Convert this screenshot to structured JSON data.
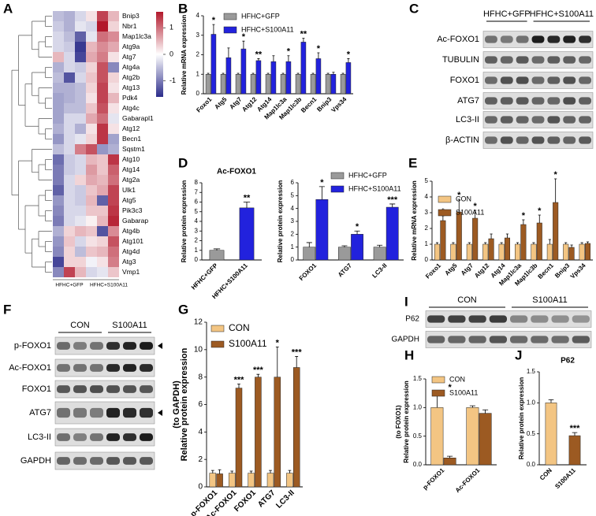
{
  "chart_data": [
    {
      "type": "heatmap",
      "panel": "A",
      "rows": [
        "Bnip3",
        "Nbr1",
        "Map1lc3a",
        "Atg9a",
        "Atg7",
        "Atg4a",
        "Atg2b",
        "Atg13",
        "Pdk4",
        "Atg4c",
        "Gabarapl1",
        "Atg12",
        "Becn1",
        "Sqstm1",
        "Atg10",
        "Atg14",
        "Atg2a",
        "Ulk1",
        "Atg5",
        "Pik3c3",
        "Gabarap",
        "Atg4b",
        "Atg101",
        "Atg4d",
        "Atg3",
        "Vmp1"
      ],
      "groups": [
        "HFHC+GFP",
        "HFHC+S100A11"
      ],
      "values": [
        [
          -0.5,
          -0.6,
          -0.3,
          0.2,
          1.3,
          0.5
        ],
        [
          -0.4,
          -0.6,
          -0.2,
          -0.3,
          1.6,
          0.3
        ],
        [
          -0.3,
          -0.5,
          -1.2,
          -0.2,
          1.0,
          0.8
        ],
        [
          -0.3,
          -0.4,
          -1.5,
          0.5,
          0.8,
          0.6
        ],
        [
          0.5,
          -0.3,
          -1.4,
          0.6,
          0.9,
          0.2
        ],
        [
          -0.6,
          -0.3,
          -0.4,
          0.3,
          1.2,
          -0.9
        ],
        [
          -0.5,
          -1.3,
          -0.3,
          0.4,
          1.2,
          0.3
        ],
        [
          -0.6,
          -0.6,
          -0.5,
          0.3,
          1.3,
          0.2
        ],
        [
          -0.7,
          -0.6,
          -0.5,
          0.2,
          1.3,
          0.5
        ],
        [
          -0.7,
          -0.5,
          -0.5,
          0.4,
          1.2,
          0.2
        ],
        [
          -0.7,
          -0.3,
          -0.3,
          0.6,
          1.0,
          -0.2
        ],
        [
          -0.6,
          -0.3,
          -0.6,
          0.2,
          1.4,
          0.2
        ],
        [
          -0.8,
          -0.3,
          -0.2,
          0.3,
          1.4,
          -0.7
        ],
        [
          -0.5,
          -0.3,
          0.9,
          1.2,
          -0.8,
          -0.6
        ],
        [
          -1.1,
          -0.4,
          -0.3,
          0.5,
          0.4,
          1.4
        ],
        [
          -1.0,
          -0.4,
          -0.3,
          0.7,
          0.4,
          1.1
        ],
        [
          -1.0,
          -0.3,
          0.3,
          0.6,
          0.5,
          1.0
        ],
        [
          -1.2,
          -0.3,
          -0.4,
          0.4,
          0.6,
          1.3
        ],
        [
          -0.8,
          -0.3,
          -0.4,
          0.5,
          -1.2,
          1.3
        ],
        [
          -0.9,
          -0.3,
          -0.3,
          0.4,
          0.4,
          1.4
        ],
        [
          -1.0,
          -0.3,
          -0.2,
          0.1,
          0.5,
          1.5
        ],
        [
          -0.6,
          0.3,
          0.5,
          0.4,
          -1.3,
          0.8
        ],
        [
          -0.8,
          0.4,
          -0.3,
          0.2,
          0.3,
          1.2
        ],
        [
          -0.9,
          0.3,
          -0.5,
          0.4,
          0.5,
          1.0
        ],
        [
          -1.4,
          0.3,
          0.3,
          -0.1,
          0.2,
          0.9
        ],
        [
          -0.9,
          1.3,
          0.5,
          -0.3,
          -0.2,
          0.4
        ]
      ],
      "colormap": [
        "#2b2c8a",
        "#ffffff",
        "#b2182b"
      ],
      "clim": [
        -1.6,
        1.6
      ],
      "cticks": [
        1,
        0,
        -1
      ]
    },
    {
      "type": "bar",
      "panel": "B",
      "ylabel": "Relative mRNA expression",
      "categories": [
        "Foxo1",
        "Atg5",
        "Atg7",
        "Atg12",
        "Atg14",
        "Map1lc3a",
        "Map1lc3b",
        "Becn1",
        "Bnip3",
        "Vps34"
      ],
      "series": [
        {
          "name": "HFHC+GFP",
          "color": "#9a9a9a",
          "values": [
            1,
            1,
            1,
            1,
            1,
            1,
            1,
            1,
            1,
            1
          ],
          "errors": [
            0.05,
            0.05,
            0.05,
            0.05,
            0.05,
            0.05,
            0.05,
            0.05,
            0.05,
            0.05
          ]
        },
        {
          "name": "HFHC+S100A11",
          "color": "#2222dd",
          "values": [
            3.05,
            1.85,
            2.3,
            1.7,
            1.65,
            1.65,
            2.65,
            1.8,
            1.0,
            1.6
          ],
          "errors": [
            0.5,
            0.5,
            0.4,
            0.1,
            0.3,
            0.3,
            0.2,
            0.3,
            0.1,
            0.2
          ]
        }
      ],
      "significance": [
        "*",
        null,
        "*",
        "**",
        null,
        "*",
        "**",
        "*",
        null,
        "*"
      ],
      "ylim": [
        0,
        4
      ],
      "yticks": [
        0,
        1,
        2,
        3,
        4
      ]
    },
    {
      "type": "bar",
      "panel": "D",
      "title": "Ac-FOXO1",
      "ylabel": "Relative protein expression",
      "categories": [
        "HFHC+GFP",
        "HFHC+S100A11"
      ],
      "values": [
        1,
        5.4
      ],
      "errors": [
        0.15,
        0.6
      ],
      "colors": [
        "#9a9a9a",
        "#2222dd"
      ],
      "significance": [
        null,
        "**"
      ],
      "ylim": [
        0,
        8
      ],
      "yticks": [
        0,
        1,
        2,
        3,
        4,
        5,
        6,
        7,
        8
      ]
    },
    {
      "type": "bar",
      "ylabel": "Relative protein expression",
      "categories": [
        "FOXO1",
        "ATG7",
        "LC3-II"
      ],
      "series": [
        {
          "name": "HFHC+GFP",
          "color": "#9a9a9a",
          "values": [
            1,
            1,
            1
          ],
          "errors": [
            0.35,
            0.1,
            0.15
          ]
        },
        {
          "name": "HFHC+S100A11",
          "color": "#2222dd",
          "values": [
            4.7,
            2.0,
            4.1
          ],
          "errors": [
            1.0,
            0.25,
            0.25
          ]
        }
      ],
      "significance": [
        "*",
        "*",
        "***"
      ],
      "ylim": [
        0,
        6
      ],
      "yticks": [
        0,
        1,
        2,
        3,
        4,
        5,
        6
      ]
    },
    {
      "type": "bar",
      "panel": "E",
      "ylabel": "Relative mRNA expression",
      "categories": [
        "Foxo1",
        "Atg5",
        "Atg7",
        "Atg12",
        "Atg14",
        "Map1lc3a",
        "Map1lc3b",
        "Becn1",
        "Bnip3",
        "Vps34"
      ],
      "series": [
        {
          "name": "CON",
          "color": "#f3c583",
          "values": [
            1,
            1,
            1,
            1,
            1,
            1,
            1,
            1,
            1,
            1
          ],
          "errors": [
            0.1,
            0.1,
            0.1,
            0.1,
            0.1,
            0.1,
            0.1,
            0.3,
            0.1,
            0.1
          ]
        },
        {
          "name": "S100A11",
          "color": "#9c5a22",
          "values": [
            2.5,
            3.05,
            2.65,
            1.35,
            1.4,
            2.25,
            2.35,
            3.65,
            0.8,
            1.05
          ],
          "errors": [
            0.3,
            0.8,
            0.5,
            0.3,
            0.25,
            0.3,
            0.5,
            1.5,
            0.15,
            0.1
          ]
        }
      ],
      "significance": [
        "*",
        "*",
        "*",
        null,
        null,
        "*",
        "*",
        "*",
        null,
        null
      ],
      "ylim": [
        0,
        5
      ],
      "yticks": [
        0,
        1,
        2,
        3,
        4,
        5
      ]
    },
    {
      "type": "bar",
      "panel": "G",
      "ylabel": [
        "Relative protein expression",
        "(to GAPDH)"
      ],
      "categories": [
        "p-FOXO1",
        "Ac-FOXO1",
        "FOXO1",
        "ATG7",
        "LC3-II"
      ],
      "series": [
        {
          "name": "CON",
          "color": "#f3c583",
          "values": [
            1,
            1,
            1,
            1,
            1
          ],
          "errors": [
            0.2,
            0.15,
            0.15,
            0.2,
            0.2
          ]
        },
        {
          "name": "S100A11",
          "color": "#9c5a22",
          "values": [
            0.95,
            7.2,
            8.0,
            8.0,
            8.7
          ],
          "errors": [
            0.3,
            0.3,
            0.2,
            2.2,
            0.8
          ]
        }
      ],
      "significance": [
        null,
        "***",
        "***",
        "*",
        "***"
      ],
      "ylim": [
        0,
        12
      ],
      "yticks": [
        0,
        2,
        4,
        6,
        8,
        10,
        12
      ]
    },
    {
      "type": "bar",
      "panel": "H",
      "ylabel": [
        "Relative protein expression",
        "(to FOXO1)"
      ],
      "categories": [
        "p-FOXO1",
        "Ac-FOXO1"
      ],
      "series": [
        {
          "name": "CON",
          "color": "#f3c583",
          "values": [
            1.0,
            1.0
          ],
          "errors": [
            0.28,
            0.03
          ]
        },
        {
          "name": "S100A11",
          "color": "#9c5a22",
          "values": [
            0.12,
            0.9
          ],
          "errors": [
            0.03,
            0.06
          ]
        }
      ],
      "significance": [
        "*",
        null
      ],
      "ylim": [
        0,
        1.5
      ],
      "yticks": [
        {
          "value": 0,
          "label": "0.0"
        },
        0.5,
        {
          "value": 1,
          "label": "1.0"
        },
        1.5
      ]
    },
    {
      "type": "bar",
      "panel": "J",
      "title": "P62",
      "ylabel": "Relative protein expression",
      "categories": [
        "CON",
        "S100A11"
      ],
      "values": [
        1.0,
        0.47
      ],
      "errors": [
        0.05,
        0.05
      ],
      "colors": [
        "#f3c583",
        "#9c5a22"
      ],
      "significance": [
        null,
        "***"
      ],
      "ylim": [
        0,
        1.5
      ],
      "yticks": [
        {
          "value": 0,
          "label": "0.0"
        },
        0.5,
        {
          "value": 1,
          "label": "1.0"
        },
        1.5
      ]
    }
  ],
  "blots": [
    {
      "panel": "C",
      "groups": [
        "HFHC+GFP",
        "HFHC+S100A11"
      ],
      "rows": [
        "Ac-FOXO1",
        "TUBULIN",
        "FOXO1",
        "ATG7",
        "LC3-II",
        "β-ACTIN"
      ]
    },
    {
      "panel": "F",
      "groups": [
        "CON",
        "S100A11"
      ],
      "rows": [
        "p-FOXO1",
        "Ac-FOXO1",
        "FOXO1",
        "ATG7",
        "LC3-II",
        "GAPDH"
      ]
    },
    {
      "panel": "I",
      "groups": [
        "CON",
        "S100A11"
      ],
      "rows": [
        "P62",
        "GAPDH"
      ]
    }
  ]
}
